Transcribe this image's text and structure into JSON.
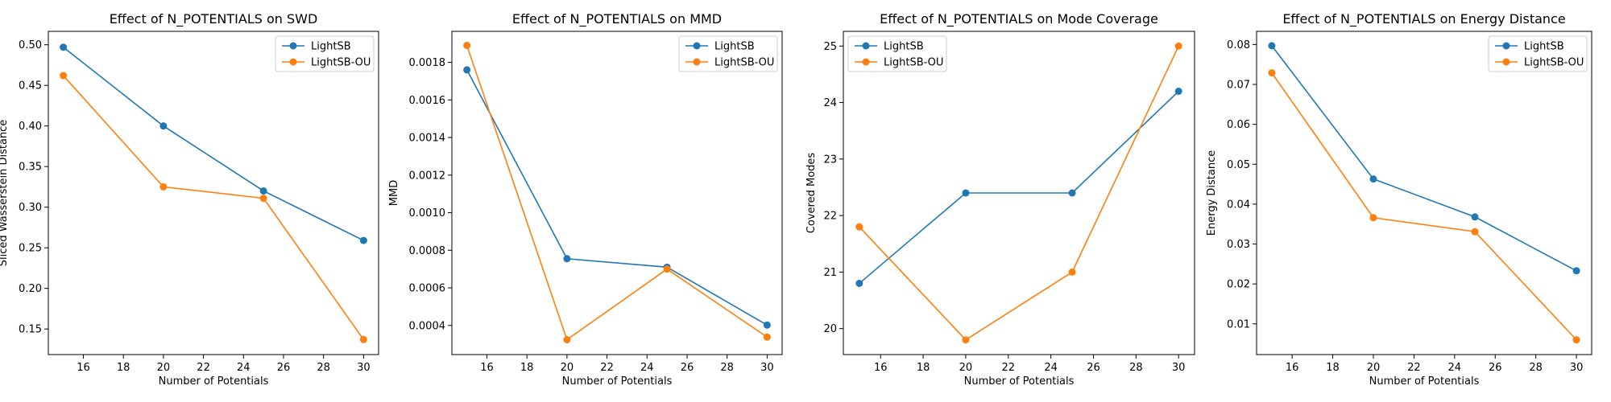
{
  "chart_data": [
    {
      "type": "line",
      "title": "Effect of N_POTENTIALS on SWD",
      "xlabel": "Number of Potentials",
      "ylabel": "Sliced Wasserstein Distance",
      "x": [
        15,
        20,
        25,
        30
      ],
      "xlim": [
        14.25,
        30.75
      ],
      "ylim": [
        0.1185,
        0.5165
      ],
      "xticks": [
        16,
        18,
        20,
        22,
        24,
        26,
        28,
        30
      ],
      "yticks": [
        0.15,
        0.2,
        0.25,
        0.3,
        0.35,
        0.4,
        0.45,
        0.5
      ],
      "ytick_labels": [
        "0.15",
        "0.20",
        "0.25",
        "0.30",
        "0.35",
        "0.40",
        "0.45",
        "0.50"
      ],
      "legend_position": "upper right",
      "series": [
        {
          "name": "LightSB",
          "color": "#1f77b4",
          "values": [
            0.497,
            0.4,
            0.32,
            0.259
          ]
        },
        {
          "name": "LightSB-OU",
          "color": "#ff7f0e",
          "values": [
            0.462,
            0.325,
            0.311,
            0.137
          ]
        }
      ]
    },
    {
      "type": "line",
      "title": "Effect of N_POTENTIALS on MMD",
      "xlabel": "Number of Potentials",
      "ylabel": "MMD",
      "x": [
        15,
        20,
        25,
        30
      ],
      "xlim": [
        14.25,
        30.75
      ],
      "ylim": [
        0.000245,
        0.001965
      ],
      "xticks": [
        16,
        18,
        20,
        22,
        24,
        26,
        28,
        30
      ],
      "yticks": [
        0.0004,
        0.0006,
        0.0008,
        0.001,
        0.0012,
        0.0014,
        0.0016,
        0.0018
      ],
      "ytick_labels": [
        "0.0004",
        "0.0006",
        "0.0008",
        "0.0010",
        "0.0012",
        "0.0014",
        "0.0016",
        "0.0018"
      ],
      "legend_position": "upper right",
      "series": [
        {
          "name": "LightSB",
          "color": "#1f77b4",
          "values": [
            0.00176,
            0.000755,
            0.00071,
            0.000402
          ]
        },
        {
          "name": "LightSB-OU",
          "color": "#ff7f0e",
          "values": [
            0.00189,
            0.000324,
            0.0007,
            0.000338
          ]
        }
      ]
    },
    {
      "type": "line",
      "title": "Effect of N_POTENTIALS on Mode Coverage",
      "xlabel": "Number of Potentials",
      "ylabel": "Covered Modes",
      "x": [
        15,
        20,
        25,
        30
      ],
      "xlim": [
        14.25,
        30.75
      ],
      "ylim": [
        19.54,
        25.26
      ],
      "xticks": [
        16,
        18,
        20,
        22,
        24,
        26,
        28,
        30
      ],
      "yticks": [
        20,
        21,
        22,
        23,
        24,
        25
      ],
      "ytick_labels": [
        "20",
        "21",
        "22",
        "23",
        "24",
        "25"
      ],
      "legend_position": "upper left",
      "series": [
        {
          "name": "LightSB",
          "color": "#1f77b4",
          "values": [
            20.8,
            22.4,
            22.4,
            24.2
          ]
        },
        {
          "name": "LightSB-OU",
          "color": "#ff7f0e",
          "values": [
            21.8,
            19.8,
            21.0,
            25.0
          ]
        }
      ]
    },
    {
      "type": "line",
      "title": "Effect of N_POTENTIALS on Energy Distance",
      "xlabel": "Number of Potentials",
      "ylabel": "Energy Distance",
      "x": [
        15,
        20,
        25,
        30
      ],
      "xlim": [
        14.25,
        30.75
      ],
      "ylim": [
        0.0023,
        0.0833
      ],
      "xticks": [
        16,
        18,
        20,
        22,
        24,
        26,
        28,
        30
      ],
      "yticks": [
        0.01,
        0.02,
        0.03,
        0.04,
        0.05,
        0.06,
        0.07,
        0.08
      ],
      "ytick_labels": [
        "0.01",
        "0.02",
        "0.03",
        "0.04",
        "0.05",
        "0.06",
        "0.07",
        "0.08"
      ],
      "legend_position": "upper right",
      "series": [
        {
          "name": "LightSB",
          "color": "#1f77b4",
          "values": [
            0.0797,
            0.0463,
            0.0368,
            0.0233
          ]
        },
        {
          "name": "LightSB-OU",
          "color": "#ff7f0e",
          "values": [
            0.0729,
            0.0366,
            0.0331,
            0.006
          ]
        }
      ]
    }
  ]
}
